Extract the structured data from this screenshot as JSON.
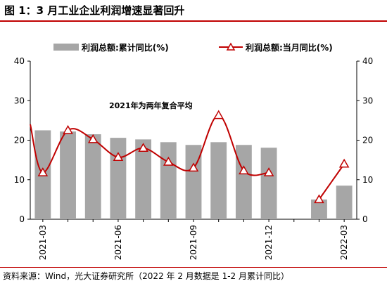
{
  "figure": {
    "title": "图 1：3 月工业企业利润增速显著回升",
    "source": "资料来源：Wind，光大证券研究所（2022 年 2 月数据是 1-2 月累计同比）"
  },
  "chart_data": {
    "type": "bar+line",
    "title": "",
    "xlabel": "",
    "ylabel": "",
    "ylim": [
      0,
      40
    ],
    "y2lim": [
      0,
      40
    ],
    "yticks": [
      0,
      10,
      20,
      30,
      40
    ],
    "grid": false,
    "legend_position": "top",
    "categories": [
      "2021-03",
      "2021-04",
      "2021-05",
      "2021-06",
      "2021-07",
      "2021-08",
      "2021-09",
      "2021-10",
      "2021-11",
      "2021-12",
      "2022-01",
      "2022-02",
      "2022-03"
    ],
    "x_tick_labels": [
      "2021-03",
      "2021-06",
      "2021-09",
      "2021-12",
      "2022-03"
    ],
    "series": [
      {
        "name": "利润总额:累计同比(%)",
        "kind": "bar",
        "color": "#a6a6a6",
        "values": [
          22.5,
          22.2,
          21.5,
          20.6,
          20.2,
          19.5,
          18.8,
          19.5,
          18.8,
          18.1,
          null,
          5.0,
          8.5
        ]
      },
      {
        "name": "利润总额:当月同比(%)",
        "kind": "line",
        "color": "#c00000",
        "values": [
          11.8,
          22.5,
          20.2,
          15.7,
          18.0,
          14.5,
          13.0,
          26.3,
          12.3,
          11.8,
          null,
          5.0,
          14.0
        ]
      }
    ],
    "line_start_value": 24.0,
    "annotation": "2021年为两年复合平均"
  }
}
